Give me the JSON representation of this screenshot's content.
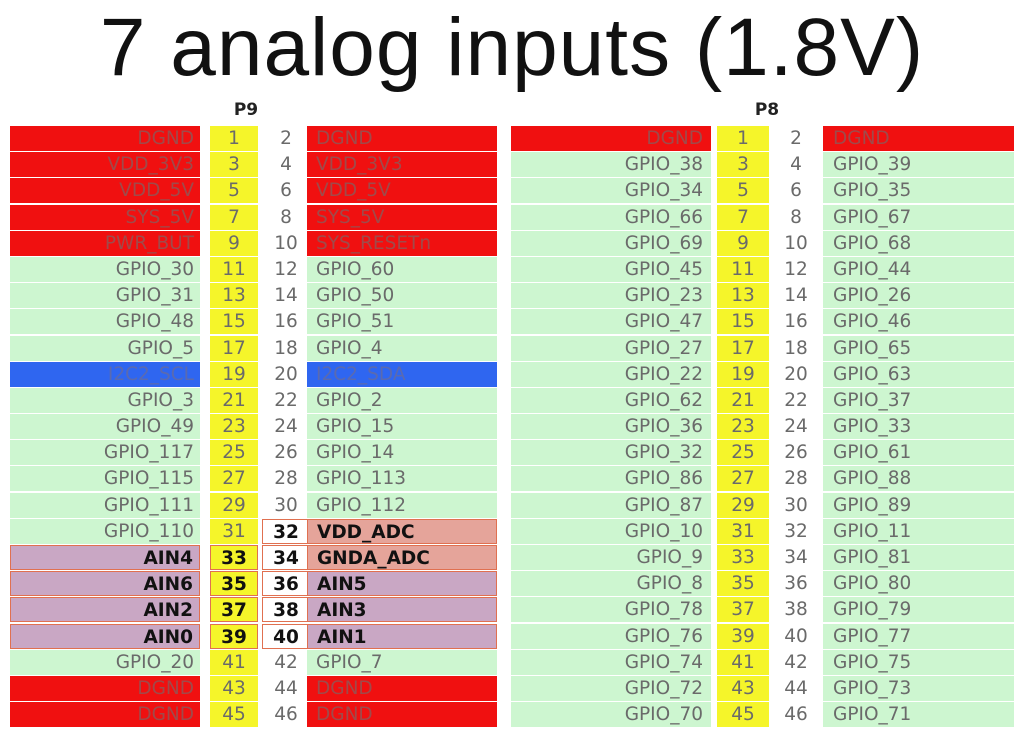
{
  "title": "7 analog inputs (1.8V)",
  "headers": {
    "p9": "P9",
    "p8": "P8"
  },
  "colors": {
    "power": "#f01010",
    "gpio": "#cdf6d0",
    "i2c": "#2f66f0",
    "adc": "#c9a7c4",
    "pin_odd_row": "#f5f52a"
  },
  "p9": [
    {
      "left": "DGND",
      "lp": "1",
      "rp": "2",
      "right": "DGND",
      "lt": "power",
      "rt": "power"
    },
    {
      "left": "VDD_3V3",
      "lp": "3",
      "rp": "4",
      "right": "VDD_3V3",
      "lt": "power",
      "rt": "power"
    },
    {
      "left": "VDD_5V",
      "lp": "5",
      "rp": "6",
      "right": "VDD_5V",
      "lt": "power",
      "rt": "power"
    },
    {
      "left": "SYS_5V",
      "lp": "7",
      "rp": "8",
      "right": "SYS_5V",
      "lt": "power",
      "rt": "power"
    },
    {
      "left": "PWR_BUT",
      "lp": "9",
      "rp": "10",
      "right": "SYS_RESETn",
      "lt": "power",
      "rt": "power"
    },
    {
      "left": "GPIO_30",
      "lp": "11",
      "rp": "12",
      "right": "GPIO_60",
      "lt": "gpio",
      "rt": "gpio"
    },
    {
      "left": "GPIO_31",
      "lp": "13",
      "rp": "14",
      "right": "GPIO_50",
      "lt": "gpio",
      "rt": "gpio"
    },
    {
      "left": "GPIO_48",
      "lp": "15",
      "rp": "16",
      "right": "GPIO_51",
      "lt": "gpio",
      "rt": "gpio"
    },
    {
      "left": "GPIO_5",
      "lp": "17",
      "rp": "18",
      "right": "GPIO_4",
      "lt": "gpio",
      "rt": "gpio"
    },
    {
      "left": "I2C2_SCL",
      "lp": "19",
      "rp": "20",
      "right": "I2C2_SDA",
      "lt": "i2c",
      "rt": "i2c"
    },
    {
      "left": "GPIO_3",
      "lp": "21",
      "rp": "22",
      "right": "GPIO_2",
      "lt": "gpio",
      "rt": "gpio"
    },
    {
      "left": "GPIO_49",
      "lp": "23",
      "rp": "24",
      "right": "GPIO_15",
      "lt": "gpio",
      "rt": "gpio"
    },
    {
      "left": "GPIO_117",
      "lp": "25",
      "rp": "26",
      "right": "GPIO_14",
      "lt": "gpio",
      "rt": "gpio"
    },
    {
      "left": "GPIO_115",
      "lp": "27",
      "rp": "28",
      "right": "GPIO_113",
      "lt": "gpio",
      "rt": "gpio"
    },
    {
      "left": "GPIO_111",
      "lp": "29",
      "rp": "30",
      "right": "GPIO_112",
      "lt": "gpio",
      "rt": "gpio"
    },
    {
      "left": "GPIO_110",
      "lp": "31",
      "rp": "32",
      "right": "VDD_ADC",
      "lt": "gpio",
      "rt": "vadc",
      "hl": "right"
    },
    {
      "left": "AIN4",
      "lp": "33",
      "rp": "34",
      "right": "GNDA_ADC",
      "lt": "adc",
      "rt": "vadc",
      "hl": "both"
    },
    {
      "left": "AIN6",
      "lp": "35",
      "rp": "36",
      "right": "AIN5",
      "lt": "adc",
      "rt": "adc",
      "hl": "both"
    },
    {
      "left": "AIN2",
      "lp": "37",
      "rp": "38",
      "right": "AIN3",
      "lt": "adc",
      "rt": "adc",
      "hl": "both"
    },
    {
      "left": "AIN0",
      "lp": "39",
      "rp": "40",
      "right": "AIN1",
      "lt": "adc",
      "rt": "adc",
      "hl": "both"
    },
    {
      "left": "GPIO_20",
      "lp": "41",
      "rp": "42",
      "right": "GPIO_7",
      "lt": "gpio",
      "rt": "gpio"
    },
    {
      "left": "DGND",
      "lp": "43",
      "rp": "44",
      "right": "DGND",
      "lt": "power",
      "rt": "power"
    },
    {
      "left": "DGND",
      "lp": "45",
      "rp": "46",
      "right": "DGND",
      "lt": "power",
      "rt": "power"
    }
  ],
  "p8": [
    {
      "left": "DGND",
      "lp": "1",
      "rp": "2",
      "right": "DGND",
      "lt": "power",
      "rt": "power"
    },
    {
      "left": "GPIO_38",
      "lp": "3",
      "rp": "4",
      "right": "GPIO_39",
      "lt": "gpio",
      "rt": "gpio"
    },
    {
      "left": "GPIO_34",
      "lp": "5",
      "rp": "6",
      "right": "GPIO_35",
      "lt": "gpio",
      "rt": "gpio"
    },
    {
      "left": "GPIO_66",
      "lp": "7",
      "rp": "8",
      "right": "GPIO_67",
      "lt": "gpio",
      "rt": "gpio"
    },
    {
      "left": "GPIO_69",
      "lp": "9",
      "rp": "10",
      "right": "GPIO_68",
      "lt": "gpio",
      "rt": "gpio"
    },
    {
      "left": "GPIO_45",
      "lp": "11",
      "rp": "12",
      "right": "GPIO_44",
      "lt": "gpio",
      "rt": "gpio"
    },
    {
      "left": "GPIO_23",
      "lp": "13",
      "rp": "14",
      "right": "GPIO_26",
      "lt": "gpio",
      "rt": "gpio"
    },
    {
      "left": "GPIO_47",
      "lp": "15",
      "rp": "16",
      "right": "GPIO_46",
      "lt": "gpio",
      "rt": "gpio"
    },
    {
      "left": "GPIO_27",
      "lp": "17",
      "rp": "18",
      "right": "GPIO_65",
      "lt": "gpio",
      "rt": "gpio"
    },
    {
      "left": "GPIO_22",
      "lp": "19",
      "rp": "20",
      "right": "GPIO_63",
      "lt": "gpio",
      "rt": "gpio"
    },
    {
      "left": "GPIO_62",
      "lp": "21",
      "rp": "22",
      "right": "GPIO_37",
      "lt": "gpio",
      "rt": "gpio"
    },
    {
      "left": "GPIO_36",
      "lp": "23",
      "rp": "24",
      "right": "GPIO_33",
      "lt": "gpio",
      "rt": "gpio"
    },
    {
      "left": "GPIO_32",
      "lp": "25",
      "rp": "26",
      "right": "GPIO_61",
      "lt": "gpio",
      "rt": "gpio"
    },
    {
      "left": "GPIO_86",
      "lp": "27",
      "rp": "28",
      "right": "GPIO_88",
      "lt": "gpio",
      "rt": "gpio"
    },
    {
      "left": "GPIO_87",
      "lp": "29",
      "rp": "30",
      "right": "GPIO_89",
      "lt": "gpio",
      "rt": "gpio"
    },
    {
      "left": "GPIO_10",
      "lp": "31",
      "rp": "32",
      "right": "GPIO_11",
      "lt": "gpio",
      "rt": "gpio"
    },
    {
      "left": "GPIO_9",
      "lp": "33",
      "rp": "34",
      "right": "GPIO_81",
      "lt": "gpio",
      "rt": "gpio"
    },
    {
      "left": "GPIO_8",
      "lp": "35",
      "rp": "36",
      "right": "GPIO_80",
      "lt": "gpio",
      "rt": "gpio"
    },
    {
      "left": "GPIO_78",
      "lp": "37",
      "rp": "38",
      "right": "GPIO_79",
      "lt": "gpio",
      "rt": "gpio"
    },
    {
      "left": "GPIO_76",
      "lp": "39",
      "rp": "40",
      "right": "GPIO_77",
      "lt": "gpio",
      "rt": "gpio"
    },
    {
      "left": "GPIO_74",
      "lp": "41",
      "rp": "42",
      "right": "GPIO_75",
      "lt": "gpio",
      "rt": "gpio"
    },
    {
      "left": "GPIO_72",
      "lp": "43",
      "rp": "44",
      "right": "GPIO_73",
      "lt": "gpio",
      "rt": "gpio"
    },
    {
      "left": "GPIO_70",
      "lp": "45",
      "rp": "46",
      "right": "GPIO_71",
      "lt": "gpio",
      "rt": "gpio"
    }
  ]
}
